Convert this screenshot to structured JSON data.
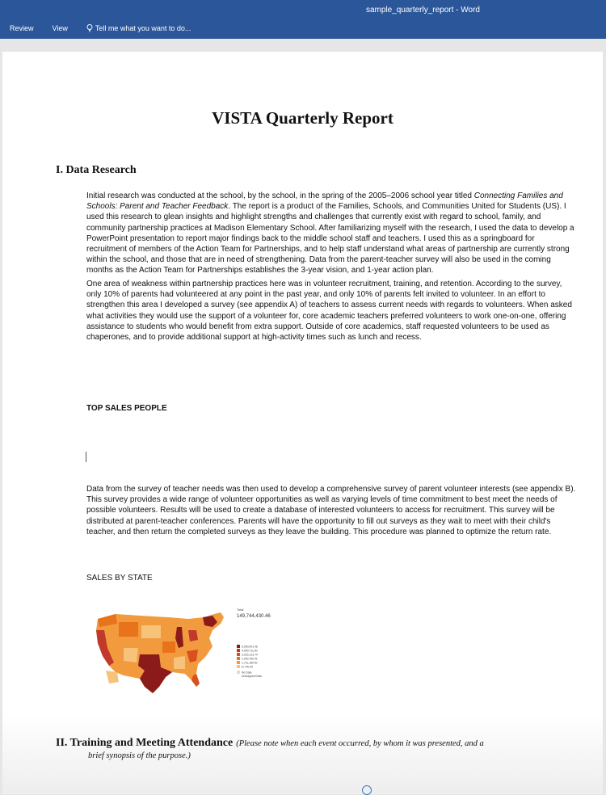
{
  "window": {
    "title": "sample_quarterly_report - Word"
  },
  "ribbon": {
    "tabs": [
      "Review",
      "View"
    ],
    "tell_me": "Tell me what you want to do..."
  },
  "document": {
    "title": "VISTA Quarterly Report",
    "section1_heading": "I. Data Research",
    "p1_a": "Initial research was conducted at the school, by the school, in the spring of the 2005–2006 school year titled",
    "p1_italic": "Connecting Families and Schools: Parent and Teacher Feedback",
    "p1_b": ". The report is a product of the Families, Schools, and Communities United for Students (US). I used this research to glean insights and highlight strengths and challenges that currently exist with regard to school, family, and community partnership practices at Madison Elementary School. After familiarizing myself with the research, I used the data to develop a PowerPoint presentation to report major findings back to the middle school staff and teachers. I used this as a springboard for recruitment of members of the Action Team for Partnerships, and to help staff understand what areas of partnership are currently strong within the school, and those that are in need of strengthening. Data from the parent-teacher survey will also be used in the coming months as the Action Team for Partnerships establishes the 3-year vision, and 1-year action plan.",
    "p2": "One area of weakness within partnership practices here was in volunteer recruitment, training, and retention. According to the survey, only 10% of parents had volunteered at any point in the past year, and only 10% of parents felt invited to volunteer. In an effort to strengthen this area I developed a survey (see appendix A) of teachers to assess current needs with regards to volunteers. When asked what activities they would use the support of a volunteer for, core academic teachers preferred volunteers to work one-on-one, offering assistance to students who would benefit from extra support. Outside of core academics, staff requested volunteers to be used as chaperones, and to provide additional support at high-activity times such as lunch and recess.",
    "top_sales_heading": "TOP SALES PEOPLE",
    "p3": "Data from the survey of teacher needs was then used to develop a comprehensive survey of parent volunteer interests (see appendix B). This survey provides a wide range of volunteer opportunities as well as varying levels of time commitment to best meet the needs of possible volunteers. Results will be used to create a database of interested volunteers to access for recruitment. This survey will be distributed at parent-teacher conferences. Parents will have the opportunity to fill out surveys as they wait to meet with their child's teacher, and then return the completed surveys as they leave the building. This procedure was planned to optimize the return rate.",
    "sales_by_state_heading": "SALES BY STATE",
    "map": {
      "total_label": "Total",
      "total_value": "149,744,430.46",
      "legend": [
        "5,000,001.46",
        "4,000,711.00",
        "3,015,123.74",
        "2,000,750.41",
        "1,711,180.00",
        "to 700.00"
      ],
      "no_data": "No Data",
      "unmapped": "Unmapped Data",
      "colors": [
        "#8b1a1a",
        "#c0392b",
        "#d9501e",
        "#e8731a",
        "#f19a3e",
        "#f7c27a"
      ]
    },
    "section2_heading": "II. Training and Meeting Attendance",
    "section2_note_a": "(Please note when each event occurred, by whom it was presented, and a",
    "section2_note_b": "brief synopsis of the purpose.)"
  }
}
